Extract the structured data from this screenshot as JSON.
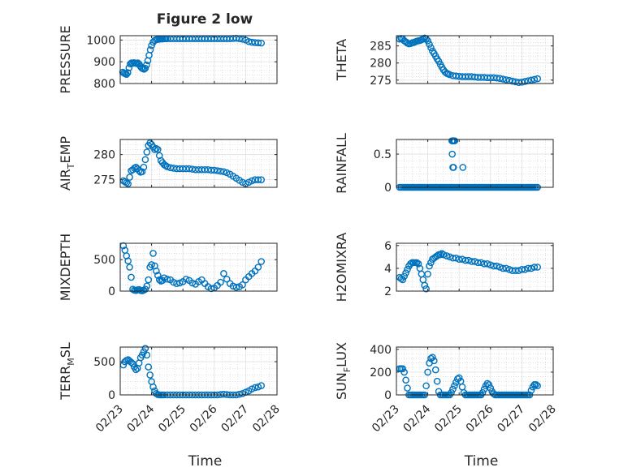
{
  "figure": {
    "title": "Figure 2 low",
    "x_axis_label": "Time",
    "x_tick_labels": [
      "02/23",
      "02/24",
      "02/25",
      "02/26",
      "02/27",
      "02/28"
    ]
  },
  "chart_data": [
    {
      "type": "scatter",
      "id": "pressure",
      "ylabel": "PRESSURE",
      "ylabel_sub": "",
      "ylim": [
        800,
        1020
      ],
      "yticks": [
        800,
        900,
        1000
      ],
      "xlim": [
        0,
        5
      ],
      "grid": true,
      "color": "#0072BD",
      "x": [
        0.08,
        0.12,
        0.16,
        0.2,
        0.24,
        0.28,
        0.32,
        0.36,
        0.4,
        0.44,
        0.48,
        0.52,
        0.56,
        0.6,
        0.64,
        0.68,
        0.72,
        0.76,
        0.8,
        0.84,
        0.88,
        0.92,
        0.96,
        1.0,
        1.05,
        1.1,
        1.15,
        1.2,
        1.25,
        1.3,
        1.35,
        1.4,
        1.45,
        1.5,
        1.6,
        1.7,
        1.8,
        1.9,
        2.0,
        2.1,
        2.2,
        2.3,
        2.4,
        2.5,
        2.6,
        2.7,
        2.8,
        2.9,
        3.0,
        3.1,
        3.2,
        3.3,
        3.4,
        3.5,
        3.6,
        3.7,
        3.8,
        3.9,
        4.0,
        4.1,
        4.2,
        4.3,
        4.4,
        4.5
      ],
      "y": [
        852,
        848,
        845,
        842,
        850,
        872,
        890,
        895,
        893,
        896,
        894,
        892,
        895,
        890,
        880,
        872,
        868,
        866,
        870,
        885,
        905,
        930,
        955,
        975,
        990,
        998,
        1002,
        1003,
        1004,
        1005,
        1005,
        1006,
        1006,
        1006,
        1006,
        1006,
        1006,
        1006,
        1006,
        1006,
        1006,
        1006,
        1006,
        1006,
        1006,
        1006,
        1006,
        1006,
        1006,
        1006,
        1006,
        1006,
        1006,
        1006,
        1007,
        1008,
        1006,
        1004,
        1000,
        993,
        990,
        988,
        987,
        986
      ]
    },
    {
      "type": "scatter",
      "id": "theta",
      "ylabel": "THETA",
      "ylabel_sub": "",
      "ylim": [
        274,
        288
      ],
      "yticks": [
        275,
        280,
        285
      ],
      "xlim": [
        0,
        5
      ],
      "grid": true,
      "color": "#0072BD",
      "x": [
        0.1,
        0.15,
        0.2,
        0.25,
        0.3,
        0.35,
        0.4,
        0.45,
        0.5,
        0.55,
        0.6,
        0.65,
        0.7,
        0.75,
        0.8,
        0.85,
        0.9,
        0.95,
        1.0,
        1.05,
        1.1,
        1.15,
        1.2,
        1.25,
        1.3,
        1.35,
        1.4,
        1.45,
        1.5,
        1.55,
        1.6,
        1.65,
        1.7,
        1.8,
        1.9,
        2.0,
        2.1,
        2.2,
        2.3,
        2.4,
        2.5,
        2.6,
        2.7,
        2.8,
        2.9,
        3.0,
        3.1,
        3.2,
        3.3,
        3.4,
        3.5,
        3.6,
        3.7,
        3.8,
        3.9,
        4.0,
        4.1,
        4.2,
        4.3,
        4.4,
        4.5
      ],
      "y": [
        287,
        287.2,
        287.1,
        286.5,
        286.2,
        285.8,
        285.6,
        285.7,
        285.9,
        286,
        286.2,
        286.4,
        286.5,
        286.6,
        286.8,
        287,
        287.3,
        287.1,
        286.5,
        285.5,
        284.5,
        283.5,
        282.8,
        282,
        281.2,
        280.5,
        279.6,
        278.8,
        278,
        277.4,
        277,
        276.8,
        276.6,
        276.3,
        276.2,
        276.1,
        276,
        276,
        276,
        276,
        275.9,
        275.8,
        275.8,
        275.8,
        275.7,
        275.7,
        275.7,
        275.6,
        275.5,
        275.3,
        275.1,
        274.9,
        274.7,
        274.5,
        274.3,
        274.4,
        274.6,
        274.8,
        275,
        275.2,
        275.4
      ]
    },
    {
      "type": "scatter",
      "id": "air_temp",
      "ylabel": "AIR",
      "ylabel_sub": "T",
      "ylabel_rest": "EMP",
      "ylim": [
        273.5,
        283
      ],
      "yticks": [
        275,
        280
      ],
      "xlim": [
        0,
        5
      ],
      "grid": true,
      "color": "#0072BD",
      "x": [
        0.1,
        0.15,
        0.2,
        0.25,
        0.3,
        0.35,
        0.4,
        0.45,
        0.5,
        0.55,
        0.6,
        0.65,
        0.7,
        0.75,
        0.8,
        0.85,
        0.9,
        0.95,
        1.0,
        1.05,
        1.1,
        1.15,
        1.2,
        1.25,
        1.3,
        1.35,
        1.4,
        1.45,
        1.5,
        1.6,
        1.7,
        1.8,
        1.9,
        2.0,
        2.1,
        2.2,
        2.3,
        2.4,
        2.5,
        2.6,
        2.7,
        2.8,
        2.9,
        3.0,
        3.1,
        3.2,
        3.3,
        3.4,
        3.5,
        3.6,
        3.7,
        3.8,
        3.9,
        4.0,
        4.1,
        4.2,
        4.3,
        4.4,
        4.5
      ],
      "y": [
        274.8,
        274.6,
        274.4,
        274.2,
        275.5,
        276.8,
        277,
        277.3,
        277.5,
        277.2,
        276.8,
        276.5,
        276.6,
        277.5,
        279,
        280.5,
        281.8,
        282.3,
        282,
        281.5,
        281,
        281.2,
        281,
        279.8,
        278.8,
        278.4,
        278,
        277.8,
        277.6,
        277.4,
        277.3,
        277.2,
        277.2,
        277.2,
        277.2,
        277.2,
        277.1,
        277,
        277,
        277,
        277,
        277,
        276.9,
        276.9,
        276.8,
        276.7,
        276.6,
        276.4,
        276.1,
        275.7,
        275.3,
        274.9,
        274.5,
        274.2,
        274.5,
        274.8,
        275,
        275,
        275
      ]
    },
    {
      "type": "scatter",
      "id": "rainfall",
      "ylabel": "RAINFALL",
      "ylabel_sub": "",
      "ylim": [
        0,
        0.72
      ],
      "yticks": [
        0,
        0.5
      ],
      "xlim": [
        0,
        5
      ],
      "grid": true,
      "color": "#0072BD",
      "x": [
        0.1,
        0.15,
        0.2,
        0.25,
        0.3,
        0.35,
        0.4,
        0.45,
        0.5,
        0.55,
        0.6,
        0.65,
        0.7,
        0.75,
        0.8,
        0.85,
        0.9,
        0.95,
        1.0,
        1.05,
        1.1,
        1.15,
        1.2,
        1.25,
        1.3,
        1.35,
        1.4,
        1.45,
        1.5,
        1.55,
        1.6,
        1.65,
        1.7,
        1.75,
        1.8,
        1.85,
        1.9,
        1.95,
        2.0,
        2.05,
        2.1,
        2.15,
        2.2,
        2.25,
        2.3,
        2.35,
        2.4,
        2.45,
        2.5,
        2.55,
        2.6,
        2.65,
        2.7,
        2.75,
        2.8,
        2.85,
        2.9,
        2.95,
        3.0,
        3.05,
        3.1,
        3.15,
        3.2,
        3.25,
        3.3,
        3.35,
        3.4,
        3.45,
        3.5,
        3.55,
        3.6,
        3.65,
        3.7,
        3.75,
        3.8,
        3.85,
        3.9,
        3.95,
        4.0,
        4.05,
        4.1,
        4.15,
        4.2,
        4.25,
        4.3,
        4.35,
        4.4,
        4.45,
        4.5,
        1.77,
        1.8,
        1.82,
        1.84,
        1.86,
        1.78,
        1.8,
        1.82,
        2.12
      ],
      "y": [
        0,
        0,
        0,
        0,
        0,
        0,
        0,
        0,
        0,
        0,
        0,
        0,
        0,
        0,
        0,
        0,
        0,
        0,
        0,
        0,
        0,
        0,
        0,
        0,
        0,
        0,
        0,
        0,
        0,
        0,
        0,
        0,
        0,
        0,
        0,
        0,
        0,
        0,
        0,
        0,
        0,
        0,
        0,
        0,
        0,
        0,
        0,
        0,
        0,
        0,
        0,
        0,
        0,
        0,
        0,
        0,
        0,
        0,
        0,
        0,
        0,
        0,
        0,
        0,
        0,
        0,
        0,
        0,
        0,
        0,
        0,
        0,
        0,
        0,
        0,
        0,
        0,
        0,
        0,
        0,
        0,
        0,
        0,
        0,
        0,
        0,
        0,
        0,
        0,
        0.7,
        0.7,
        0.7,
        0.7,
        0.7,
        0.5,
        0.3,
        0.3,
        0.3
      ]
    },
    {
      "type": "scatter",
      "id": "mixdepth",
      "ylabel": "MIXDEPTH",
      "ylabel_sub": "",
      "ylim": [
        0,
        760
      ],
      "yticks": [
        0,
        500
      ],
      "xlim": [
        0,
        5
      ],
      "grid": true,
      "color": "#0072BD",
      "x": [
        0.1,
        0.15,
        0.2,
        0.25,
        0.3,
        0.35,
        0.4,
        0.45,
        0.5,
        0.55,
        0.6,
        0.65,
        0.7,
        0.75,
        0.8,
        0.85,
        0.9,
        0.95,
        1.0,
        1.05,
        1.1,
        1.15,
        1.2,
        1.25,
        1.3,
        1.35,
        1.4,
        1.5,
        1.6,
        1.7,
        1.8,
        1.9,
        2.0,
        2.1,
        2.2,
        2.3,
        2.4,
        2.5,
        2.6,
        2.7,
        2.8,
        2.9,
        3.0,
        3.1,
        3.2,
        3.3,
        3.4,
        3.5,
        3.6,
        3.7,
        3.8,
        3.9,
        4.0,
        4.1,
        4.2,
        4.3,
        4.4,
        4.5
      ],
      "y": [
        720,
        650,
        560,
        480,
        380,
        220,
        30,
        15,
        10,
        20,
        25,
        10,
        5,
        15,
        30,
        80,
        180,
        380,
        420,
        600,
        400,
        320,
        250,
        180,
        160,
        170,
        210,
        190,
        180,
        140,
        120,
        130,
        150,
        190,
        170,
        130,
        110,
        150,
        180,
        120,
        70,
        40,
        50,
        90,
        140,
        280,
        190,
        120,
        80,
        60,
        70,
        100,
        180,
        230,
        280,
        320,
        380,
        470
      ]
    },
    {
      "type": "scatter",
      "id": "h2omixra",
      "ylabel": "H2OMIXRA",
      "ylabel_sub": "",
      "ylim": [
        2,
        6.2
      ],
      "yticks": [
        2,
        4,
        6
      ],
      "xlim": [
        0,
        5
      ],
      "grid": true,
      "color": "#0072BD",
      "x": [
        0.1,
        0.15,
        0.2,
        0.25,
        0.3,
        0.35,
        0.4,
        0.45,
        0.5,
        0.55,
        0.6,
        0.65,
        0.7,
        0.75,
        0.8,
        0.85,
        0.9,
        0.95,
        1.0,
        1.05,
        1.1,
        1.15,
        1.2,
        1.25,
        1.3,
        1.35,
        1.4,
        1.45,
        1.5,
        1.6,
        1.7,
        1.8,
        1.9,
        2.0,
        2.1,
        2.2,
        2.3,
        2.4,
        2.5,
        2.6,
        2.7,
        2.8,
        2.9,
        3.0,
        3.1,
        3.2,
        3.3,
        3.4,
        3.5,
        3.6,
        3.7,
        3.8,
        3.9,
        4.0,
        4.1,
        4.2,
        4.3,
        4.4,
        4.5
      ],
      "y": [
        3.2,
        3.1,
        3.0,
        3.3,
        3.6,
        3.9,
        4.2,
        4.4,
        4.5,
        4.5,
        4.5,
        4.5,
        4.4,
        4.0,
        3.5,
        3.0,
        2.5,
        2.2,
        3.5,
        4.2,
        4.5,
        4.8,
        4.9,
        5.0,
        5.1,
        5.2,
        5.2,
        5.3,
        5.2,
        5.1,
        5.0,
        4.9,
        4.9,
        4.8,
        4.8,
        4.7,
        4.7,
        4.6,
        4.6,
        4.5,
        4.5,
        4.4,
        4.4,
        4.3,
        4.2,
        4.2,
        4.1,
        4.0,
        4.0,
        3.9,
        3.8,
        3.8,
        3.8,
        3.9,
        3.9,
        4.0,
        4.0,
        4.1,
        4.1
      ]
    },
    {
      "type": "scatter",
      "id": "terr_msl",
      "ylabel": "TERR",
      "ylabel_sub": "M",
      "ylabel_rest": "SL",
      "ylim": [
        0,
        720
      ],
      "yticks": [
        0,
        500
      ],
      "xlim": [
        0,
        5
      ],
      "grid": true,
      "color": "#0072BD",
      "x": [
        0.1,
        0.15,
        0.2,
        0.25,
        0.3,
        0.35,
        0.4,
        0.45,
        0.5,
        0.55,
        0.6,
        0.65,
        0.7,
        0.75,
        0.8,
        0.85,
        0.9,
        0.95,
        1.0,
        1.05,
        1.1,
        1.15,
        1.2,
        1.25,
        1.3,
        1.35,
        1.4,
        1.5,
        1.6,
        1.7,
        1.8,
        1.9,
        2.0,
        2.1,
        2.2,
        2.3,
        2.4,
        2.5,
        2.6,
        2.7,
        2.8,
        2.9,
        3.0,
        3.1,
        3.2,
        3.3,
        3.4,
        3.5,
        3.6,
        3.7,
        3.8,
        3.9,
        4.0,
        4.1,
        4.2,
        4.3,
        4.4,
        4.5
      ],
      "y": [
        450,
        500,
        520,
        530,
        510,
        490,
        470,
        420,
        380,
        400,
        480,
        560,
        600,
        650,
        700,
        600,
        420,
        300,
        200,
        120,
        60,
        20,
        5,
        0,
        0,
        0,
        0,
        0,
        0,
        0,
        0,
        0,
        0,
        0,
        0,
        0,
        0,
        0,
        0,
        0,
        0,
        0,
        0,
        0,
        5,
        10,
        5,
        0,
        0,
        0,
        10,
        20,
        40,
        60,
        90,
        110,
        120,
        140
      ]
    },
    {
      "type": "scatter",
      "id": "sun_flux",
      "ylabel": "SUN",
      "ylabel_sub": "F",
      "ylabel_rest": "LUX",
      "ylim": [
        0,
        420
      ],
      "yticks": [
        0,
        200,
        400
      ],
      "xlim": [
        0,
        5
      ],
      "grid": true,
      "color": "#0072BD",
      "x": [
        0.1,
        0.15,
        0.2,
        0.25,
        0.3,
        0.35,
        0.4,
        0.45,
        0.5,
        0.55,
        0.6,
        0.65,
        0.7,
        0.75,
        0.8,
        0.85,
        0.9,
        0.95,
        1.0,
        1.05,
        1.1,
        1.15,
        1.2,
        1.25,
        1.3,
        1.35,
        1.4,
        1.45,
        1.5,
        1.55,
        1.6,
        1.65,
        1.7,
        1.75,
        1.8,
        1.85,
        1.9,
        1.95,
        2.0,
        2.05,
        2.1,
        2.15,
        2.2,
        2.25,
        2.3,
        2.35,
        2.4,
        2.45,
        2.5,
        2.55,
        2.6,
        2.65,
        2.7,
        2.75,
        2.8,
        2.85,
        2.9,
        2.95,
        3.0,
        3.05,
        3.1,
        3.15,
        3.2,
        3.25,
        3.3,
        3.35,
        3.4,
        3.45,
        3.5,
        3.55,
        3.6,
        3.65,
        3.7,
        3.75,
        3.8,
        3.85,
        3.9,
        3.95,
        4.0,
        4.05,
        4.1,
        4.15,
        4.2,
        4.25,
        4.3,
        4.35,
        4.4,
        4.45,
        4.5
      ],
      "y": [
        230,
        230,
        230,
        200,
        130,
        60,
        0,
        0,
        0,
        0,
        0,
        0,
        0,
        0,
        0,
        0,
        0,
        80,
        200,
        280,
        320,
        330,
        300,
        220,
        120,
        30,
        0,
        0,
        0,
        0,
        0,
        0,
        0,
        20,
        50,
        80,
        110,
        140,
        150,
        120,
        70,
        20,
        0,
        0,
        0,
        0,
        0,
        0,
        0,
        0,
        0,
        0,
        0,
        20,
        50,
        80,
        100,
        90,
        60,
        30,
        10,
        0,
        0,
        0,
        0,
        0,
        0,
        0,
        0,
        0,
        0,
        0,
        0,
        0,
        0,
        0,
        0,
        0,
        0,
        0,
        0,
        0,
        0,
        0,
        40,
        70,
        90,
        90,
        80
      ]
    }
  ]
}
